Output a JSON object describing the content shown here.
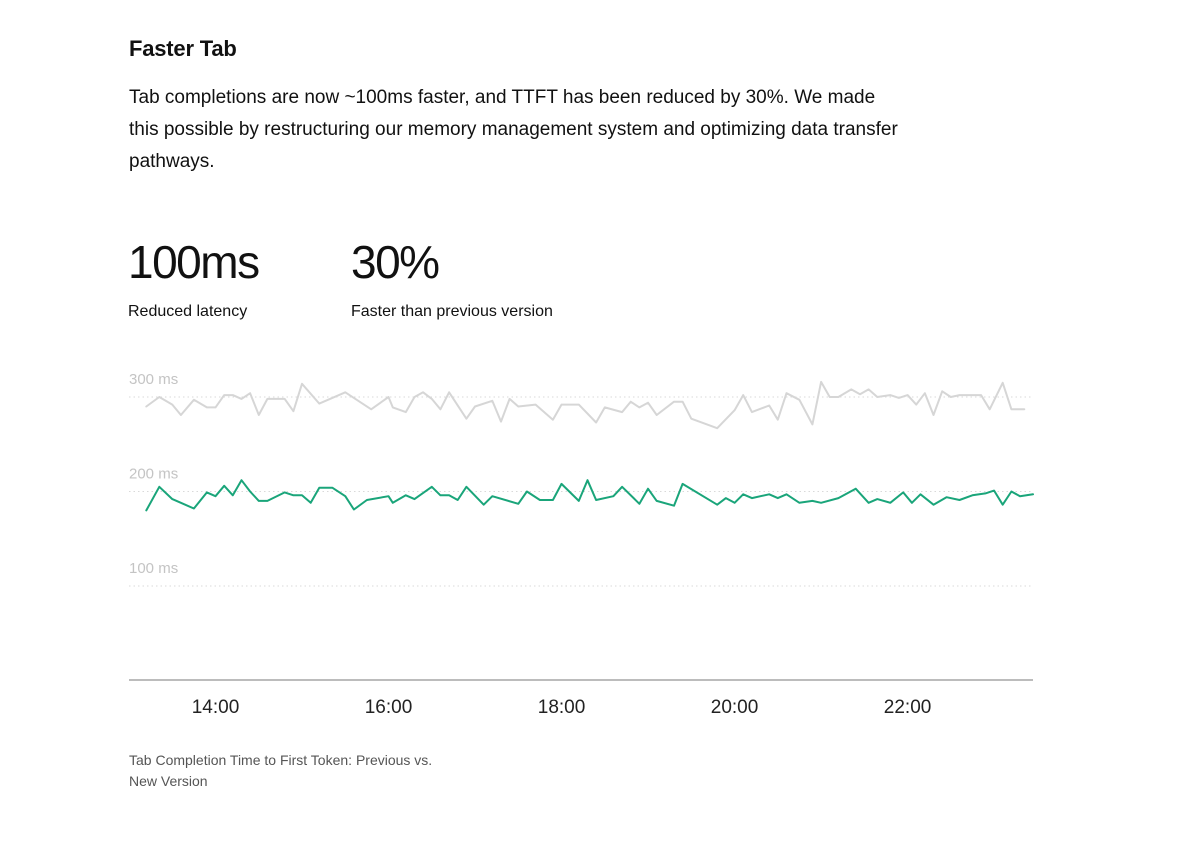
{
  "section": {
    "title": "Faster Tab",
    "description": "Tab completions are now ~100ms faster, and TTFT has been reduced by 30%. We made this possible by restructuring our memory management system and optimizing data transfer pathways."
  },
  "stats": [
    {
      "value": "100ms",
      "label": "Reduced latency"
    },
    {
      "value": "30%",
      "label": "Faster than previous version"
    }
  ],
  "caption": "Tab Completion Time to First Token: Previous vs. New Version",
  "colors": {
    "previous": "#d6d6d6",
    "new": "#1aa57a",
    "axis": "#bcbcbc",
    "gridline": "#d9d9d9",
    "y_tick_text": "#c4c4c4",
    "x_tick_text": "#222222"
  },
  "chart_data": {
    "type": "line",
    "xlim": [
      13.0,
      23.45
    ],
    "ylim": [
      0,
      320
    ],
    "y_ticks": [
      {
        "value": 300,
        "label": "300 ms"
      },
      {
        "value": 200,
        "label": "200 ms"
      },
      {
        "value": 100,
        "label": "100 ms"
      }
    ],
    "x_ticks": [
      {
        "value": 14,
        "label": "14:00"
      },
      {
        "value": 16,
        "label": "16:00"
      },
      {
        "value": 18,
        "label": "18:00"
      },
      {
        "value": 20,
        "label": "20:00"
      },
      {
        "value": 22,
        "label": "22:00"
      }
    ],
    "grid": "dotted horizontal",
    "series": [
      {
        "key": "previous",
        "values": [
          [
            13.2,
            290
          ],
          [
            13.35,
            300
          ],
          [
            13.5,
            292
          ],
          [
            13.6,
            281
          ],
          [
            13.75,
            297
          ],
          [
            13.9,
            289
          ],
          [
            14.0,
            289
          ],
          [
            14.1,
            302
          ],
          [
            14.2,
            302
          ],
          [
            14.3,
            298
          ],
          [
            14.4,
            304
          ],
          [
            14.5,
            281
          ],
          [
            14.6,
            298
          ],
          [
            14.8,
            298
          ],
          [
            14.9,
            285
          ],
          [
            15.0,
            314
          ],
          [
            15.2,
            293
          ],
          [
            15.5,
            305
          ],
          [
            15.8,
            287
          ],
          [
            16.0,
            300
          ],
          [
            16.05,
            289
          ],
          [
            16.2,
            284
          ],
          [
            16.3,
            300
          ],
          [
            16.4,
            305
          ],
          [
            16.5,
            298
          ],
          [
            16.6,
            287
          ],
          [
            16.7,
            305
          ],
          [
            16.9,
            277
          ],
          [
            17.0,
            290
          ],
          [
            17.2,
            296
          ],
          [
            17.3,
            274
          ],
          [
            17.4,
            298
          ],
          [
            17.5,
            290
          ],
          [
            17.7,
            292
          ],
          [
            17.9,
            276
          ],
          [
            18.0,
            292
          ],
          [
            18.2,
            292
          ],
          [
            18.4,
            273
          ],
          [
            18.5,
            289
          ],
          [
            18.7,
            284
          ],
          [
            18.8,
            295
          ],
          [
            18.9,
            289
          ],
          [
            19.0,
            294
          ],
          [
            19.1,
            281
          ],
          [
            19.3,
            295
          ],
          [
            19.4,
            295
          ],
          [
            19.5,
            277
          ],
          [
            19.8,
            267
          ],
          [
            20.0,
            286
          ],
          [
            20.1,
            302
          ],
          [
            20.2,
            284
          ],
          [
            20.4,
            291
          ],
          [
            20.5,
            276
          ],
          [
            20.6,
            304
          ],
          [
            20.75,
            297
          ],
          [
            20.9,
            271
          ],
          [
            21.0,
            316
          ],
          [
            21.1,
            300
          ],
          [
            21.2,
            300
          ],
          [
            21.35,
            308
          ],
          [
            21.45,
            303
          ],
          [
            21.55,
            308
          ],
          [
            21.65,
            300
          ],
          [
            21.8,
            302
          ],
          [
            21.9,
            299
          ],
          [
            22.0,
            302
          ],
          [
            22.1,
            292
          ],
          [
            22.2,
            304
          ],
          [
            22.3,
            281
          ],
          [
            22.4,
            306
          ],
          [
            22.5,
            300
          ],
          [
            22.6,
            302
          ],
          [
            22.85,
            302
          ],
          [
            22.95,
            287
          ],
          [
            23.1,
            315
          ],
          [
            23.2,
            287
          ],
          [
            23.35,
            287
          ]
        ]
      },
      {
        "key": "new",
        "values": [
          [
            13.2,
            180
          ],
          [
            13.35,
            205
          ],
          [
            13.5,
            192
          ],
          [
            13.6,
            188
          ],
          [
            13.75,
            182
          ],
          [
            13.9,
            199
          ],
          [
            14.0,
            195
          ],
          [
            14.1,
            206
          ],
          [
            14.2,
            196
          ],
          [
            14.3,
            212
          ],
          [
            14.4,
            200
          ],
          [
            14.5,
            190
          ],
          [
            14.6,
            190
          ],
          [
            14.8,
            199
          ],
          [
            14.9,
            196
          ],
          [
            15.0,
            196
          ],
          [
            15.1,
            188
          ],
          [
            15.2,
            204
          ],
          [
            15.35,
            204
          ],
          [
            15.5,
            195
          ],
          [
            15.6,
            181
          ],
          [
            15.75,
            191
          ],
          [
            16.0,
            195
          ],
          [
            16.05,
            188
          ],
          [
            16.2,
            196
          ],
          [
            16.3,
            192
          ],
          [
            16.5,
            205
          ],
          [
            16.6,
            196
          ],
          [
            16.7,
            196
          ],
          [
            16.8,
            191
          ],
          [
            16.9,
            205
          ],
          [
            17.1,
            186
          ],
          [
            17.2,
            195
          ],
          [
            17.5,
            187
          ],
          [
            17.6,
            200
          ],
          [
            17.75,
            191
          ],
          [
            17.9,
            191
          ],
          [
            18.0,
            208
          ],
          [
            18.2,
            190
          ],
          [
            18.3,
            212
          ],
          [
            18.4,
            191
          ],
          [
            18.6,
            195
          ],
          [
            18.7,
            205
          ],
          [
            18.9,
            187
          ],
          [
            19.0,
            203
          ],
          [
            19.1,
            190
          ],
          [
            19.3,
            185
          ],
          [
            19.4,
            208
          ],
          [
            19.8,
            186
          ],
          [
            19.9,
            193
          ],
          [
            20.0,
            188
          ],
          [
            20.1,
            197
          ],
          [
            20.2,
            193
          ],
          [
            20.4,
            197
          ],
          [
            20.5,
            193
          ],
          [
            20.6,
            197
          ],
          [
            20.75,
            188
          ],
          [
            20.9,
            190
          ],
          [
            21.0,
            188
          ],
          [
            21.2,
            193
          ],
          [
            21.4,
            203
          ],
          [
            21.55,
            188
          ],
          [
            21.65,
            192
          ],
          [
            21.8,
            188
          ],
          [
            21.95,
            199
          ],
          [
            22.05,
            188
          ],
          [
            22.15,
            197
          ],
          [
            22.3,
            186
          ],
          [
            22.45,
            194
          ],
          [
            22.6,
            191
          ],
          [
            22.75,
            196
          ],
          [
            22.9,
            198
          ],
          [
            23.0,
            201
          ],
          [
            23.1,
            186
          ],
          [
            23.2,
            200
          ],
          [
            23.3,
            195
          ],
          [
            23.45,
            197
          ]
        ]
      }
    ]
  }
}
